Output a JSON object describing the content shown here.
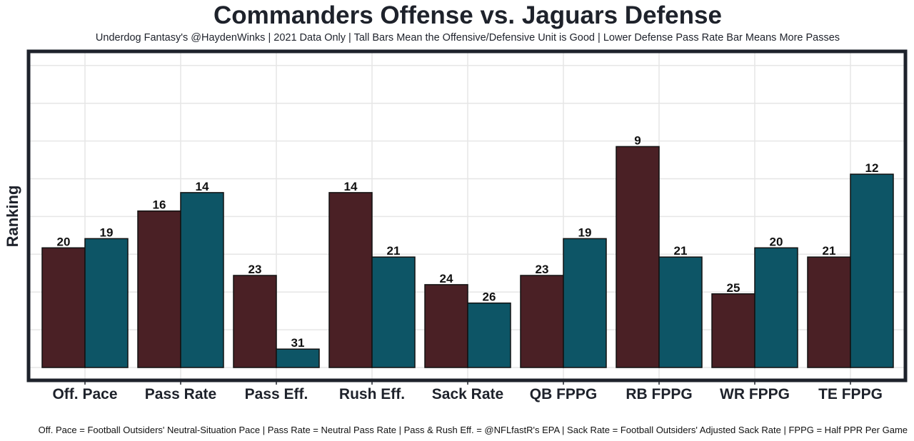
{
  "chart_data": {
    "type": "bar",
    "title": "Commanders Offense vs. Jaguars Defense",
    "subtitle": "Underdog Fantasy's @HaydenWinks | 2021 Data Only | Tall Bars Mean the Offensive/Defensive Unit is Good | Lower Defense Pass Rate Bar Means More Passes",
    "caption": "Off. Pace = Football Outsiders' Neutral-Situation Pace | Pass Rate = Neutral Pass Rate | Pass & Rush Eff. = @NFLfastR's EPA | Sack Rate = Football Outsiders' Adjusted Sack Rate | FPPG = Half PPR Per Game",
    "xlabel": "",
    "ylabel": "Ranking",
    "categories": [
      "Off. Pace",
      "Pass Rate",
      "Pass Eff.",
      "Rush Eff.",
      "Sack Rate",
      "QB FPPG",
      "RB FPPG",
      "WR FPPG",
      "TE FPPG"
    ],
    "series": [
      {
        "name": "Commanders Offense",
        "color": "#4a2025",
        "values": [
          20,
          16,
          23,
          14,
          24,
          23,
          9,
          25,
          21
        ]
      },
      {
        "name": "Jaguars Defense",
        "color": "#0d5566",
        "values": [
          19,
          14,
          31,
          21,
          26,
          19,
          21,
          20,
          12
        ]
      }
    ],
    "value_meaning": "rank (1 = best); taller bar = better rank",
    "rank_range": [
      1,
      32
    ],
    "grid": true,
    "legend": "none"
  }
}
